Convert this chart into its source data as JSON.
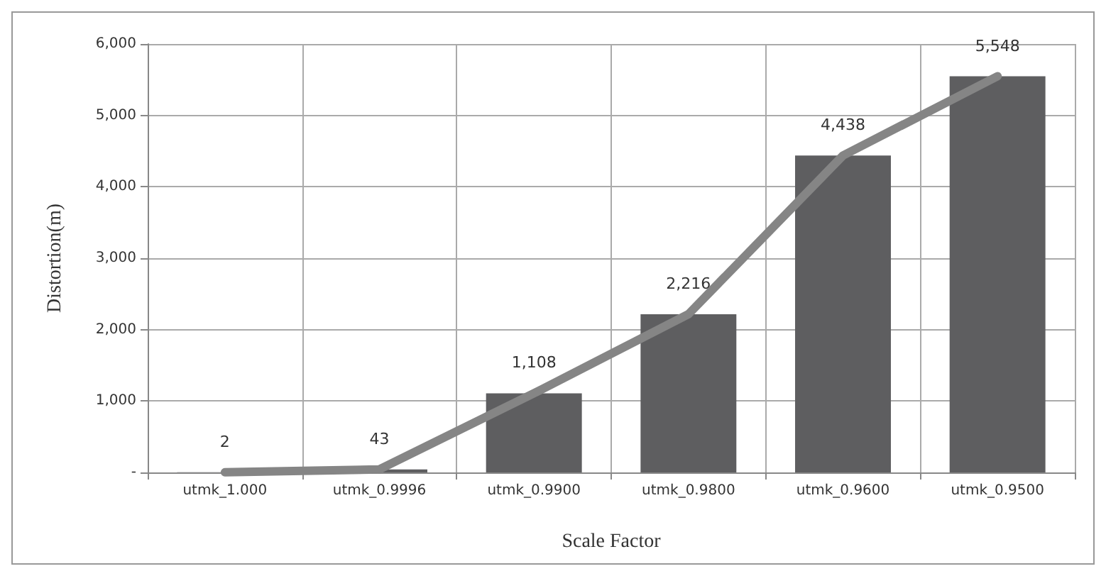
{
  "chart_data": {
    "type": "bar",
    "xlabel": "Scale Factor",
    "ylabel": "Distortion(m)",
    "categories": [
      "utmk_1.000",
      "utmk_0.9996",
      "utmk_0.9900",
      "utmk_0.9800",
      "utmk_0.9600",
      "utmk_0.9500"
    ],
    "series": [
      {
        "color": "#5e5e60",
        "values": [
          2,
          43,
          1108,
          2216,
          4438,
          5548
        ],
        "value_labels": [
          "2",
          "43",
          "1,108",
          "2,216",
          "4,438",
          "5,548"
        ]
      },
      {
        "type": "line",
        "color": "#858585",
        "values": [
          2,
          43,
          1108,
          2216,
          4438,
          5548
        ]
      }
    ],
    "ylim": [
      0,
      6000
    ],
    "yticks": [
      {
        "value": 0,
        "label": "-"
      },
      {
        "value": 1000,
        "label": "1,000"
      },
      {
        "value": 2000,
        "label": "2,000"
      },
      {
        "value": 3000,
        "label": "3,000"
      },
      {
        "value": 4000,
        "label": "4,000"
      },
      {
        "value": 5000,
        "label": "5,000"
      },
      {
        "value": 6000,
        "label": "6,000"
      }
    ],
    "grid": true,
    "marker": "none"
  }
}
